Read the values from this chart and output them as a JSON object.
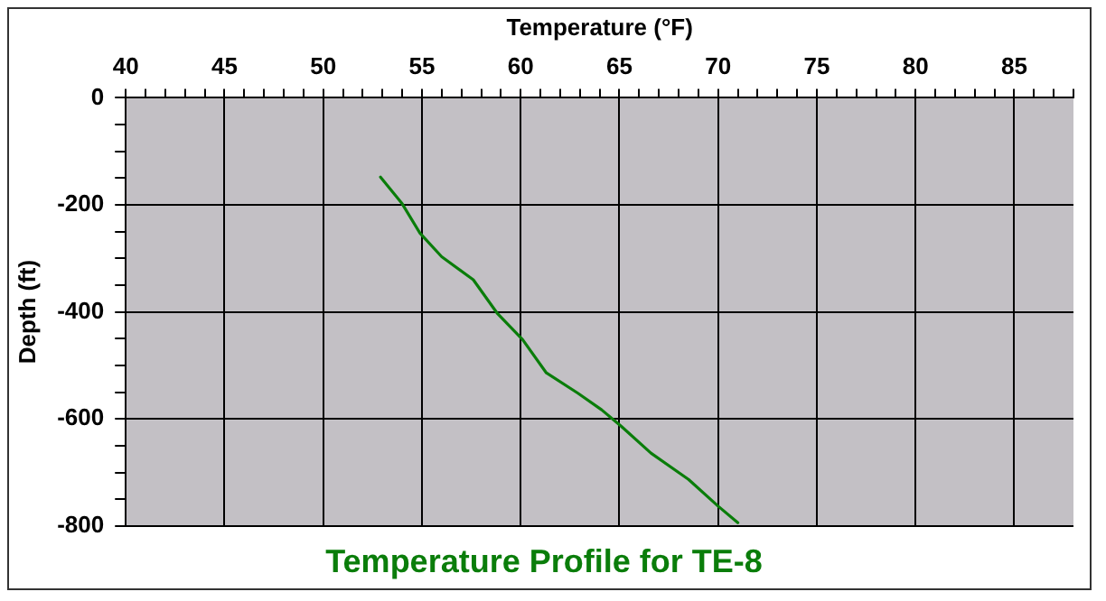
{
  "chart_data": {
    "type": "line",
    "title": "Temperature Profile for TE-8",
    "xlabel": "Temperature (°F)",
    "ylabel": "Depth (ft)",
    "series": [
      {
        "color": "#0a7d0a",
        "x": [
          52.9,
          54.0,
          54.9,
          56.0,
          57.6,
          58.8,
          60.1,
          61.3,
          62.9,
          64.1,
          65.1,
          66.6,
          68.5,
          70.0,
          71.0
        ],
        "values": [
          -148,
          -198,
          -253,
          -297,
          -340,
          -402,
          -452,
          -514,
          -552,
          -583,
          -614,
          -664,
          -713,
          -763,
          -794
        ]
      }
    ],
    "xlim": [
      40,
      88
    ],
    "xticks": [
      40,
      {
        "value": 41,
        "label": null
      },
      {
        "value": 42,
        "label": null
      },
      {
        "value": 43,
        "label": null
      },
      {
        "value": 44,
        "label": null
      },
      45,
      {
        "value": 46,
        "label": null
      },
      {
        "value": 47,
        "label": null
      },
      {
        "value": 48,
        "label": null
      },
      {
        "value": 49,
        "label": null
      },
      50,
      {
        "value": 51,
        "label": null
      },
      {
        "value": 52,
        "label": null
      },
      {
        "value": 53,
        "label": null
      },
      {
        "value": 54,
        "label": null
      },
      55,
      {
        "value": 56,
        "label": null
      },
      {
        "value": 57,
        "label": null
      },
      {
        "value": 58,
        "label": null
      },
      {
        "value": 59,
        "label": null
      },
      60,
      {
        "value": 61,
        "label": null
      },
      {
        "value": 62,
        "label": null
      },
      {
        "value": 63,
        "label": null
      },
      {
        "value": 64,
        "label": null
      },
      65,
      {
        "value": 66,
        "label": null
      },
      {
        "value": 67,
        "label": null
      },
      {
        "value": 68,
        "label": null
      },
      {
        "value": 69,
        "label": null
      },
      70,
      {
        "value": 71,
        "label": null
      },
      {
        "value": 72,
        "label": null
      },
      {
        "value": 73,
        "label": null
      },
      {
        "value": 74,
        "label": null
      },
      75,
      {
        "value": 76,
        "label": null
      },
      {
        "value": 77,
        "label": null
      },
      {
        "value": 78,
        "label": null
      },
      {
        "value": 79,
        "label": null
      },
      80,
      {
        "value": 81,
        "label": null
      },
      {
        "value": 82,
        "label": null
      },
      {
        "value": 83,
        "label": null
      },
      {
        "value": 84,
        "label": null
      },
      85,
      {
        "value": 86,
        "label": null
      },
      {
        "value": 87,
        "label": null
      },
      {
        "value": 88,
        "label": null
      }
    ],
    "ylim": [
      -800,
      0
    ],
    "yticks": [
      -800,
      {
        "value": -750,
        "label": null
      },
      {
        "value": -700,
        "label": null
      },
      {
        "value": -650,
        "label": null
      },
      -600,
      {
        "value": -550,
        "label": null
      },
      {
        "value": -500,
        "label": null
      },
      {
        "value": -450,
        "label": null
      },
      -400,
      {
        "value": -350,
        "label": null
      },
      {
        "value": -300,
        "label": null
      },
      {
        "value": -250,
        "label": null
      },
      -200,
      {
        "value": -150,
        "label": null
      },
      {
        "value": -100,
        "label": null
      },
      {
        "value": -50,
        "label": null
      },
      0
    ],
    "grid": true,
    "legend": false,
    "marker": "none",
    "line_style": "solid"
  }
}
